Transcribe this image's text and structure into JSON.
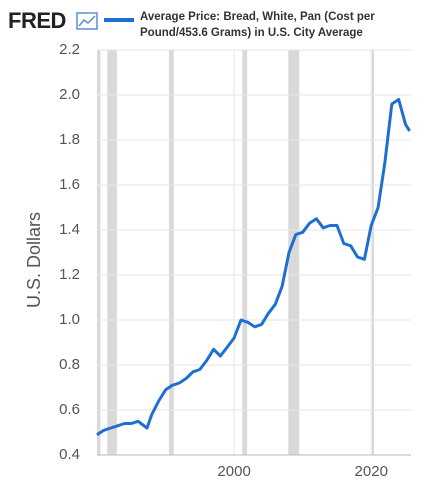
{
  "logo": "FRED",
  "chart_data": {
    "type": "line",
    "y_label": "U.S. Dollars",
    "x": [
      1980,
      1981,
      1982,
      1983,
      1984,
      1985,
      1986,
      1987.3,
      1988,
      1989,
      1990,
      1991,
      1992,
      1993,
      1994,
      1995,
      1996,
      1997,
      1998,
      1999,
      2000,
      2001,
      2002,
      2003,
      2004,
      2005,
      2006,
      2007,
      2008,
      2009,
      2010,
      2011,
      2012,
      2013,
      2014,
      2015,
      2016,
      2017,
      2018,
      2019,
      2020,
      2021,
      2022,
      2023,
      2024,
      2025,
      2025.6
    ],
    "series": [
      {
        "name": "Average Price: Bread, White, Pan (Cost per Pound/453.6 Grams) in U.S. City Average",
        "color": "#1f6fd1",
        "values": [
          0.49,
          0.51,
          0.52,
          0.53,
          0.54,
          0.54,
          0.55,
          0.52,
          0.58,
          0.64,
          0.69,
          0.71,
          0.72,
          0.74,
          0.77,
          0.78,
          0.82,
          0.87,
          0.84,
          0.88,
          0.92,
          1.0,
          0.99,
          0.97,
          0.98,
          1.03,
          1.07,
          1.15,
          1.3,
          1.38,
          1.39,
          1.43,
          1.45,
          1.41,
          1.42,
          1.42,
          1.34,
          1.33,
          1.28,
          1.27,
          1.42,
          1.5,
          1.7,
          1.96,
          1.98,
          1.87,
          1.84
        ]
      }
    ],
    "xlim": [
      1980,
      2025.8
    ],
    "xticks": [
      2000,
      2020
    ],
    "ylim": [
      0.4,
      2.2
    ],
    "yticks": [
      0.4,
      0.6,
      0.8,
      {
        "value": 1,
        "label": "1.0"
      },
      1.2,
      1.4,
      1.6,
      1.8,
      {
        "value": 2,
        "label": "2.0"
      },
      2.2
    ],
    "grid": true,
    "recessions": [
      [
        1980.0,
        1980.5
      ],
      [
        1981.5,
        1982.9
      ],
      [
        1990.5,
        1991.2
      ],
      [
        2001.2,
        2001.9
      ],
      [
        2007.9,
        2009.5
      ],
      [
        2020.1,
        2020.4
      ]
    ]
  }
}
